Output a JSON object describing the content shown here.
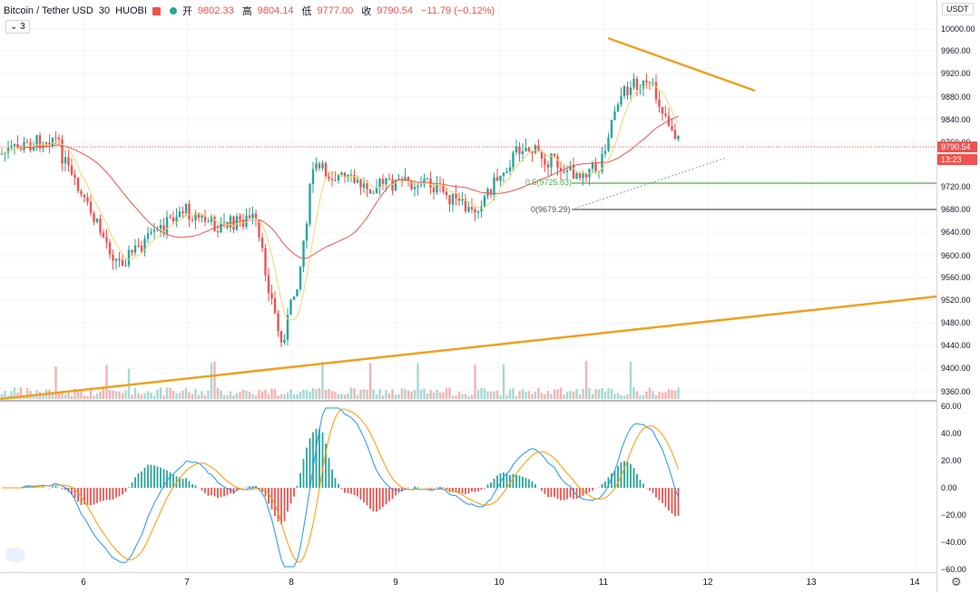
{
  "legend": {
    "symbol": "Bitcoin / Tether USD",
    "interval": "30",
    "exchange": "HUOBI",
    "open_label": "开",
    "open": "9802.33",
    "high_label": "高",
    "high": "9804.14",
    "low_label": "低",
    "low": "9777.00",
    "close_label": "收",
    "close": "9790.54",
    "change": "−11.79 (−0.12%)"
  },
  "indicator_toggle": "3",
  "currency": "USDT",
  "price_axis": [
    "10000.00",
    "9960.00",
    "9920.00",
    "9880.00",
    "9840.00",
    "9760.00",
    "9720.00",
    "9680.00",
    "9640.00",
    "9600.00",
    "9560.00",
    "9520.00",
    "9480.00",
    "9440.00",
    "9400.00",
    "9360.00"
  ],
  "macd_axis": [
    "60.00",
    "40.00",
    "20.00",
    "0.00",
    "−20.00",
    "−40.00",
    "−60.00"
  ],
  "time_axis": [
    "6",
    "7",
    "8",
    "9",
    "10",
    "11",
    "12",
    "13",
    "14"
  ],
  "last_price": "9790.54",
  "countdown": "13:23",
  "fib": {
    "level_05": "0.5(9725.83)",
    "level_0": "0(9679.29)"
  },
  "colors": {
    "up": "#26a69a",
    "down": "#ef5350",
    "ma_fast": "#f5d76e",
    "ma_slow": "#ef5350",
    "trend": "#f0a020"
  }
}
